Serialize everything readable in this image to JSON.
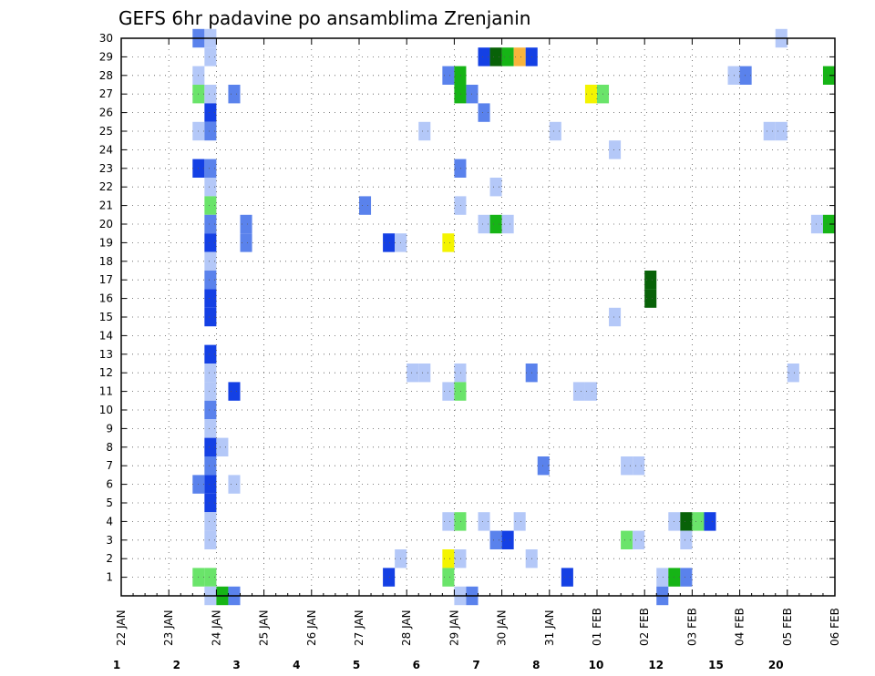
{
  "chart_data": {
    "type": "heatmap",
    "title": "GEFS 6hr padavine po ansamblima Zrenjanin",
    "y_tick_labels": [
      "1",
      "2",
      "3",
      "4",
      "5",
      "6",
      "7",
      "8",
      "9",
      "10",
      "11",
      "12",
      "13",
      "14",
      "15",
      "16",
      "17",
      "18",
      "19",
      "20",
      "21",
      "22",
      "23",
      "24",
      "25",
      "26",
      "27",
      "28",
      "29",
      "30"
    ],
    "ylim": [
      0,
      30
    ],
    "x_tick_labels": [
      "22 JAN",
      "23 JAN",
      "24 JAN",
      "25 JAN",
      "26 JAN",
      "27 JAN",
      "28 JAN",
      "29 JAN",
      "30 JAN",
      "31 JAN",
      "01 FEB",
      "02 FEB",
      "03 FEB",
      "04 FEB",
      "05 FEB",
      "06 FEB"
    ],
    "xlim_days": [
      0,
      15
    ],
    "grid": true,
    "colorbar": {
      "labels": [
        "1",
        "2",
        "3",
        "4",
        "5",
        "6",
        "7",
        "8",
        "10",
        "12",
        "15",
        "20"
      ],
      "colors": [
        "#b4c8f8",
        "#5a82ec",
        "#1440e4",
        "#6ae46a",
        "#16b416",
        "#086208",
        "#f4f400",
        "#f8b43c",
        "#f87c1c",
        "#e0321e",
        "#b41414",
        "#6a0a0a"
      ]
    },
    "cells": [
      {
        "member": 30,
        "day": 1.625,
        "level": 1
      },
      {
        "member": 30,
        "day": 1.875,
        "level": 0
      },
      {
        "member": 30,
        "day": 13.875,
        "level": 0
      },
      {
        "member": 29,
        "day": 1.875,
        "level": 0
      },
      {
        "member": 29,
        "day": 7.625,
        "level": 2
      },
      {
        "member": 29,
        "day": 7.875,
        "level": 5
      },
      {
        "member": 29,
        "day": 8.125,
        "level": 4
      },
      {
        "member": 29,
        "day": 8.375,
        "level": 7
      },
      {
        "member": 29,
        "day": 8.625,
        "level": 2
      },
      {
        "member": 28,
        "day": 1.625,
        "level": 0
      },
      {
        "member": 28,
        "day": 6.875,
        "level": 1
      },
      {
        "member": 28,
        "day": 7.125,
        "level": 4
      },
      {
        "member": 28,
        "day": 12.875,
        "level": 0
      },
      {
        "member": 28,
        "day": 13.125,
        "level": 1
      },
      {
        "member": 28,
        "day": 14.875,
        "level": 4
      },
      {
        "member": 27,
        "day": 1.625,
        "level": 3
      },
      {
        "member": 27,
        "day": 1.875,
        "level": 0
      },
      {
        "member": 27,
        "day": 2.375,
        "level": 1
      },
      {
        "member": 27,
        "day": 7.125,
        "level": 4
      },
      {
        "member": 27,
        "day": 7.375,
        "level": 1
      },
      {
        "member": 27,
        "day": 9.875,
        "level": 6
      },
      {
        "member": 27,
        "day": 10.125,
        "level": 3
      },
      {
        "member": 26,
        "day": 1.875,
        "level": 2
      },
      {
        "member": 26,
        "day": 7.625,
        "level": 1
      },
      {
        "member": 25,
        "day": 1.625,
        "level": 0
      },
      {
        "member": 25,
        "day": 1.875,
        "level": 1
      },
      {
        "member": 25,
        "day": 6.375,
        "level": 0
      },
      {
        "member": 25,
        "day": 9.125,
        "level": 0
      },
      {
        "member": 25,
        "day": 13.625,
        "level": 0
      },
      {
        "member": 25,
        "day": 13.875,
        "level": 0
      },
      {
        "member": 24,
        "day": 10.375,
        "level": 0
      },
      {
        "member": 23,
        "day": 1.625,
        "level": 2
      },
      {
        "member": 23,
        "day": 1.875,
        "level": 1
      },
      {
        "member": 23,
        "day": 7.125,
        "level": 1
      },
      {
        "member": 22,
        "day": 1.875,
        "level": 0
      },
      {
        "member": 22,
        "day": 7.875,
        "level": 0
      },
      {
        "member": 21,
        "day": 1.875,
        "level": 3
      },
      {
        "member": 21,
        "day": 5.125,
        "level": 1
      },
      {
        "member": 21,
        "day": 7.125,
        "level": 0
      },
      {
        "member": 20,
        "day": 1.875,
        "level": 1
      },
      {
        "member": 20,
        "day": 2.625,
        "level": 1
      },
      {
        "member": 20,
        "day": 7.625,
        "level": 0
      },
      {
        "member": 20,
        "day": 7.875,
        "level": 4
      },
      {
        "member": 20,
        "day": 8.125,
        "level": 0
      },
      {
        "member": 20,
        "day": 14.625,
        "level": 0
      },
      {
        "member": 20,
        "day": 14.875,
        "level": 4
      },
      {
        "member": 19,
        "day": 1.875,
        "level": 2
      },
      {
        "member": 19,
        "day": 5.625,
        "level": 2
      },
      {
        "member": 19,
        "day": 5.875,
        "level": 0
      },
      {
        "member": 19,
        "day": 6.875,
        "level": 6
      },
      {
        "member": 19,
        "day": 2.625,
        "level": 1
      },
      {
        "member": 18,
        "day": 1.875,
        "level": 0
      },
      {
        "member": 17,
        "day": 1.875,
        "level": 1
      },
      {
        "member": 17,
        "day": 11.125,
        "level": 5
      },
      {
        "member": 16,
        "day": 1.875,
        "level": 2
      },
      {
        "member": 16,
        "day": 11.125,
        "level": 5
      },
      {
        "member": 15,
        "day": 1.875,
        "level": 2
      },
      {
        "member": 15,
        "day": 10.375,
        "level": 0
      },
      {
        "member": 13,
        "day": 1.875,
        "level": 2
      },
      {
        "member": 12,
        "day": 1.875,
        "level": 0
      },
      {
        "member": 12,
        "day": 6.125,
        "level": 0
      },
      {
        "member": 12,
        "day": 6.375,
        "level": 0
      },
      {
        "member": 12,
        "day": 7.125,
        "level": 0
      },
      {
        "member": 12,
        "day": 8.625,
        "level": 1
      },
      {
        "member": 12,
        "day": 14.125,
        "level": 0
      },
      {
        "member": 11,
        "day": 1.875,
        "level": 0
      },
      {
        "member": 11,
        "day": 2.375,
        "level": 2
      },
      {
        "member": 11,
        "day": 6.875,
        "level": 0
      },
      {
        "member": 11,
        "day": 7.125,
        "level": 3
      },
      {
        "member": 11,
        "day": 9.625,
        "level": 0
      },
      {
        "member": 11,
        "day": 9.875,
        "level": 0
      },
      {
        "member": 10,
        "day": 1.875,
        "level": 1
      },
      {
        "member": 9,
        "day": 1.875,
        "level": 0
      },
      {
        "member": 8,
        "day": 1.875,
        "level": 2
      },
      {
        "member": 8,
        "day": 2.125,
        "level": 0
      },
      {
        "member": 7,
        "day": 1.875,
        "level": 1
      },
      {
        "member": 7,
        "day": 8.875,
        "level": 1
      },
      {
        "member": 7,
        "day": 10.625,
        "level": 0
      },
      {
        "member": 7,
        "day": 10.875,
        "level": 0
      },
      {
        "member": 6,
        "day": 1.625,
        "level": 1
      },
      {
        "member": 6,
        "day": 1.875,
        "level": 2
      },
      {
        "member": 6,
        "day": 2.375,
        "level": 0
      },
      {
        "member": 5,
        "day": 1.875,
        "level": 2
      },
      {
        "member": 4,
        "day": 1.875,
        "level": 0
      },
      {
        "member": 4,
        "day": 6.875,
        "level": 0
      },
      {
        "member": 4,
        "day": 7.125,
        "level": 3
      },
      {
        "member": 4,
        "day": 7.625,
        "level": 0
      },
      {
        "member": 4,
        "day": 8.375,
        "level": 0
      },
      {
        "member": 4,
        "day": 11.625,
        "level": 0
      },
      {
        "member": 4,
        "day": 11.875,
        "level": 5
      },
      {
        "member": 4,
        "day": 12.125,
        "level": 3
      },
      {
        "member": 4,
        "day": 12.375,
        "level": 2
      },
      {
        "member": 3,
        "day": 1.875,
        "level": 0
      },
      {
        "member": 3,
        "day": 7.875,
        "level": 1
      },
      {
        "member": 3,
        "day": 8.125,
        "level": 2
      },
      {
        "member": 3,
        "day": 10.625,
        "level": 3
      },
      {
        "member": 3,
        "day": 10.875,
        "level": 0
      },
      {
        "member": 3,
        "day": 11.875,
        "level": 0
      },
      {
        "member": 2,
        "day": 5.875,
        "level": 0
      },
      {
        "member": 2,
        "day": 6.875,
        "level": 6
      },
      {
        "member": 2,
        "day": 7.125,
        "level": 0
      },
      {
        "member": 2,
        "day": 8.625,
        "level": 0
      },
      {
        "member": 1,
        "day": 1.625,
        "level": 3
      },
      {
        "member": 1,
        "day": 1.875,
        "level": 3
      },
      {
        "member": 1,
        "day": 5.625,
        "level": 2
      },
      {
        "member": 1,
        "day": 6.875,
        "level": 3
      },
      {
        "member": 1,
        "day": 9.375,
        "level": 2
      },
      {
        "member": 1,
        "day": 11.375,
        "level": 0
      },
      {
        "member": 1,
        "day": 11.625,
        "level": 4
      },
      {
        "member": 1,
        "day": 11.875,
        "level": 1
      },
      {
        "member": 0,
        "day": 1.875,
        "level": 0
      },
      {
        "member": 0,
        "day": 2.125,
        "level": 4
      },
      {
        "member": 0,
        "day": 2.375,
        "level": 1
      },
      {
        "member": 0,
        "day": 7.125,
        "level": 0
      },
      {
        "member": 0,
        "day": 7.375,
        "level": 1
      },
      {
        "member": 0,
        "day": 11.375,
        "level": 1
      }
    ]
  }
}
